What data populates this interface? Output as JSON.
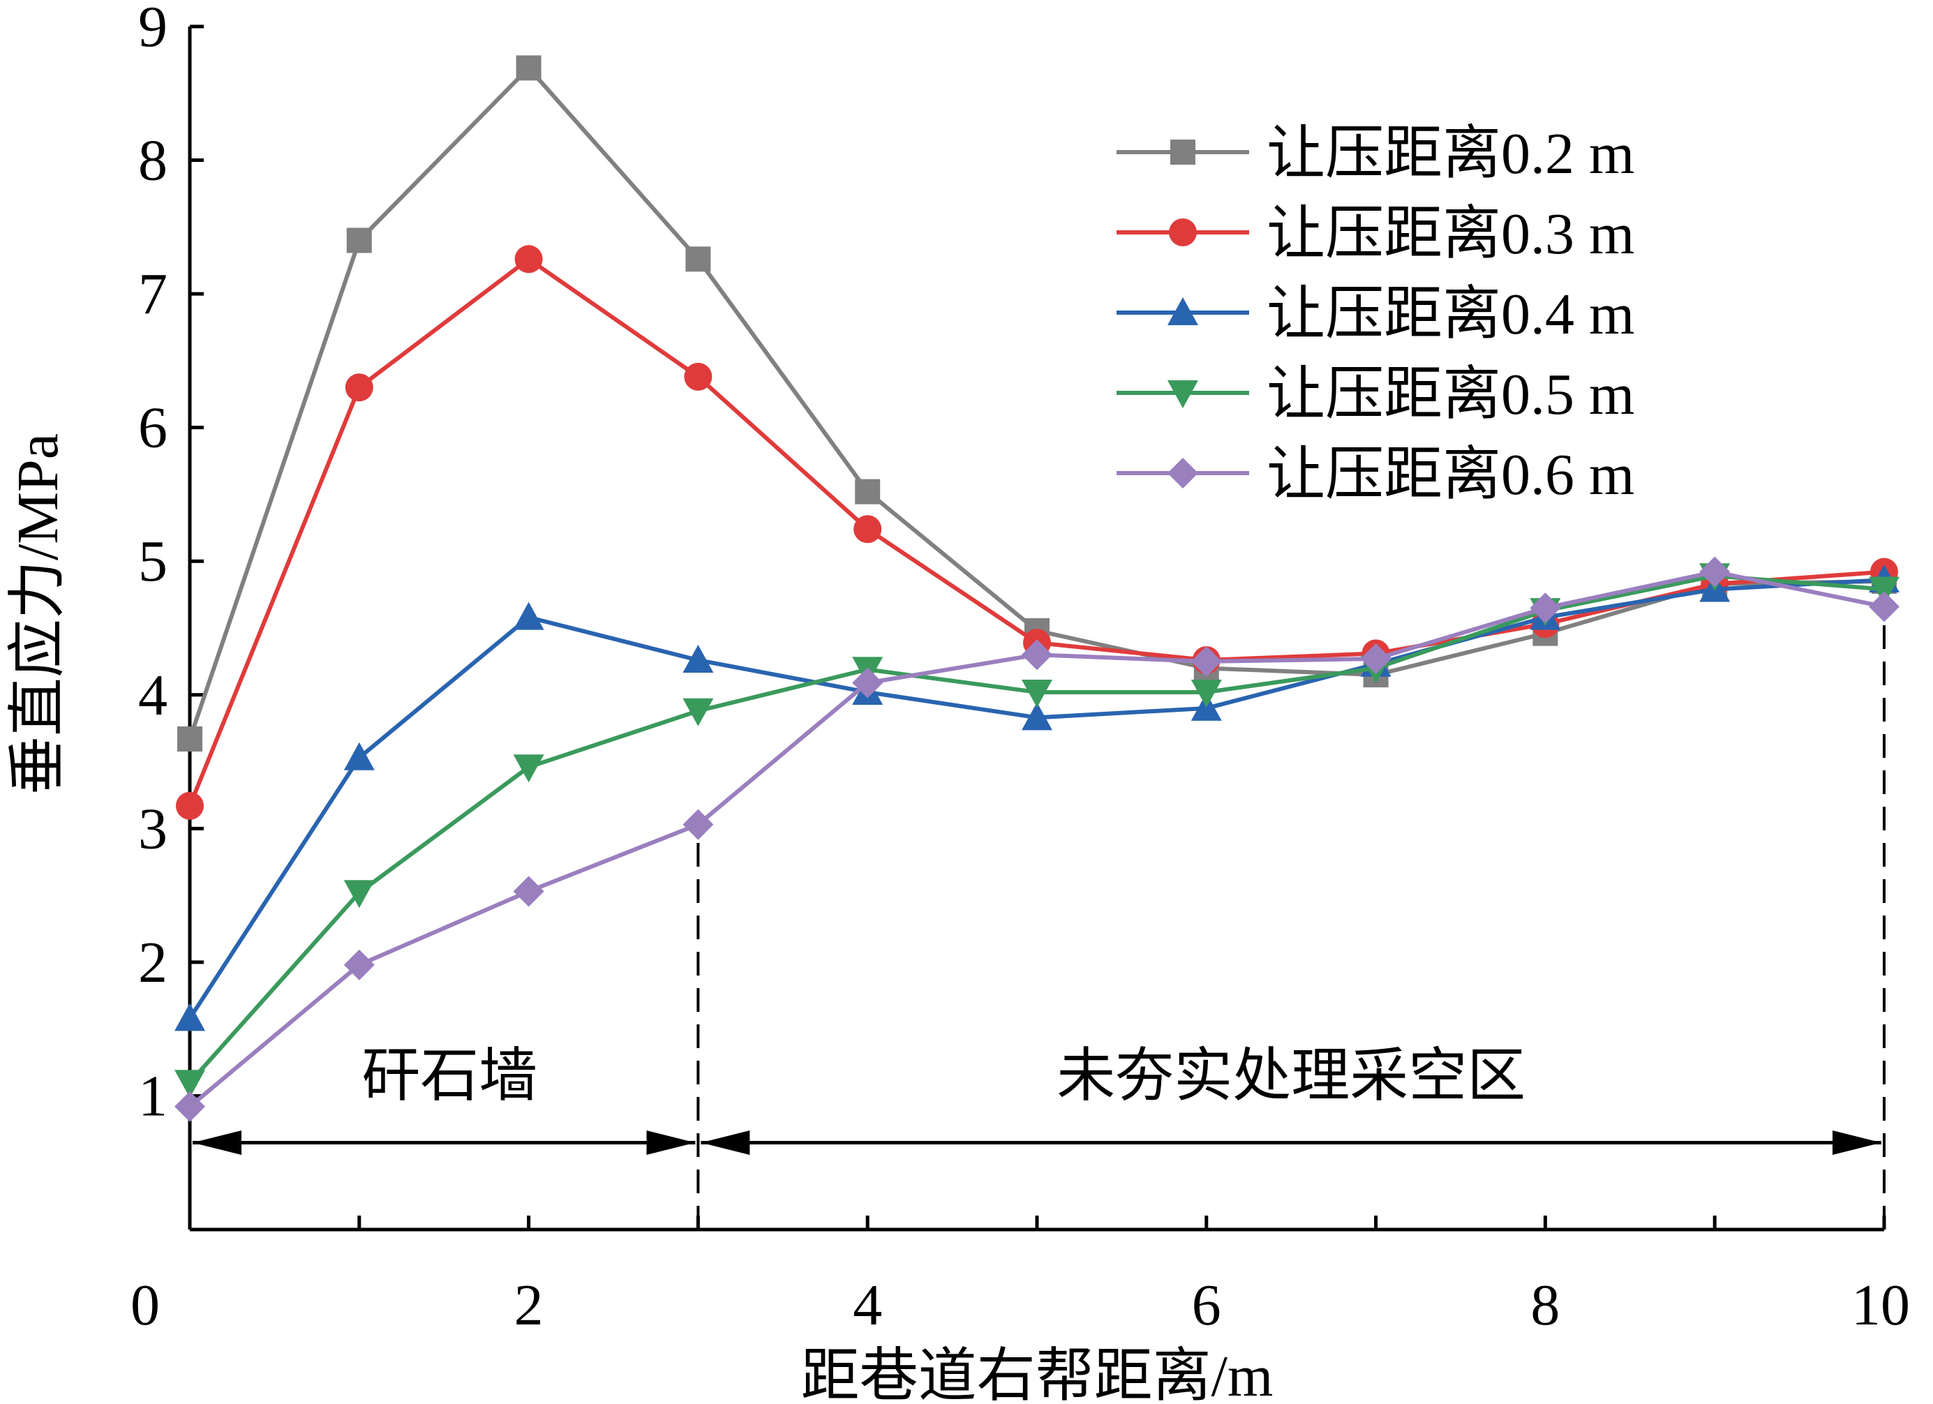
{
  "chart_data": {
    "type": "line",
    "title": "",
    "xlabel": "距巷道右帮距离/m",
    "ylabel": "垂直应力/MPa",
    "xlim": [
      0,
      10
    ],
    "ylim": [
      0,
      9
    ],
    "x_ticks": [
      "0",
      "2",
      "4",
      "6",
      "8",
      "10"
    ],
    "y_ticks": [
      "1",
      "2",
      "3",
      "4",
      "5",
      "6",
      "7",
      "8",
      "9"
    ],
    "x": [
      0,
      1,
      2,
      3,
      4,
      5,
      6,
      7,
      8,
      9,
      10
    ],
    "grid": false,
    "legend_position": "top-right",
    "series": [
      {
        "name": "让压距离0.2 m",
        "color": "#808080",
        "marker": "square",
        "values": [
          3.67,
          7.4,
          8.69,
          7.26,
          5.52,
          4.48,
          4.2,
          4.15,
          4.46,
          4.83,
          4.85
        ]
      },
      {
        "name": "让压距离0.3 m",
        "color": "#e03b3b",
        "marker": "circle",
        "values": [
          3.17,
          6.3,
          7.26,
          6.38,
          5.24,
          4.39,
          4.26,
          4.31,
          4.53,
          4.83,
          4.92
        ]
      },
      {
        "name": "让压距离0.4 m",
        "color": "#2964b0",
        "marker": "triangle-up",
        "values": [
          1.58,
          3.53,
          4.58,
          4.26,
          4.02,
          3.83,
          3.9,
          4.23,
          4.58,
          4.79,
          4.86
        ]
      },
      {
        "name": "让压距离0.5 m",
        "color": "#3a9a5c",
        "marker": "triangle-down",
        "values": [
          1.1,
          2.52,
          3.46,
          3.88,
          4.19,
          4.02,
          4.02,
          4.2,
          4.63,
          4.89,
          4.79
        ]
      },
      {
        "name": "让压距离0.6 m",
        "color": "#9a7fbf",
        "marker": "diamond",
        "values": [
          0.92,
          1.98,
          2.53,
          3.03,
          4.09,
          4.3,
          4.25,
          4.27,
          4.65,
          4.92,
          4.66
        ]
      }
    ],
    "annotations": {
      "region_left": {
        "label": "矸石墙",
        "x_range": [
          0,
          3
        ],
        "arrow_y": 0.65
      },
      "region_right": {
        "label": "未夯实处理采空区",
        "x_range": [
          3,
          10
        ],
        "arrow_y": 0.65
      },
      "dashed_lines": [
        {
          "x": 3,
          "y_range": [
            0,
            3.0
          ]
        },
        {
          "x": 10,
          "y_range": [
            0,
            4.6
          ]
        }
      ]
    }
  }
}
